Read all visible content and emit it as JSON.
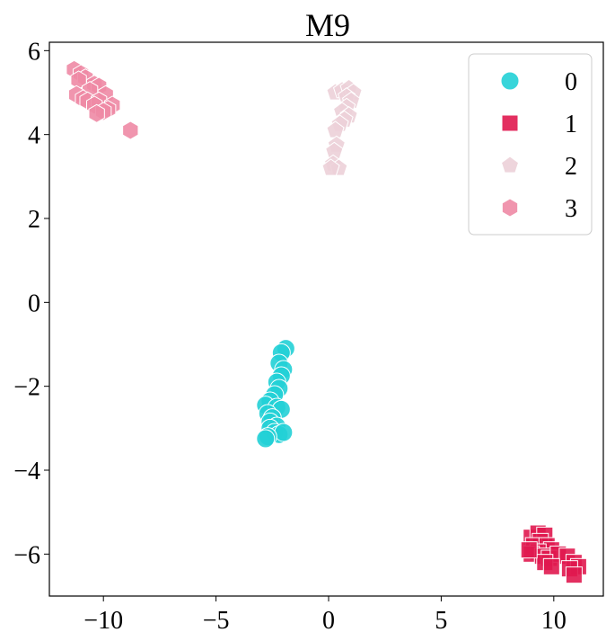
{
  "chart_data": {
    "type": "scatter",
    "title": "M9",
    "xlabel": "",
    "ylabel": "",
    "xlim": [
      -12.4,
      12.2
    ],
    "ylim": [
      -7.0,
      6.2
    ],
    "xticks": [
      -10,
      -5,
      0,
      5,
      10
    ],
    "yticks": [
      -6,
      -4,
      -2,
      0,
      2,
      4,
      6
    ],
    "xtick_labels": [
      "−10",
      "−5",
      "0",
      "5",
      "10"
    ],
    "ytick_labels": [
      "−6",
      "−4",
      "−2",
      "0",
      "2",
      "4",
      "6"
    ],
    "grid": false,
    "legend": {
      "placement": "top-right"
    },
    "series": [
      {
        "name": "0",
        "marker": "circle",
        "color": "#22d0d6",
        "points": [
          [
            -1.9,
            -1.1
          ],
          [
            -2.1,
            -1.2
          ],
          [
            -2.2,
            -1.45
          ],
          [
            -2.0,
            -1.6
          ],
          [
            -2.1,
            -1.75
          ],
          [
            -2.3,
            -1.9
          ],
          [
            -2.2,
            -2.05
          ],
          [
            -2.4,
            -2.2
          ],
          [
            -2.6,
            -2.35
          ],
          [
            -2.8,
            -2.45
          ],
          [
            -2.3,
            -2.5
          ],
          [
            -2.1,
            -2.55
          ],
          [
            -2.7,
            -2.65
          ],
          [
            -2.5,
            -2.75
          ],
          [
            -2.6,
            -2.85
          ],
          [
            -2.3,
            -2.95
          ],
          [
            -2.6,
            -3.0
          ],
          [
            -2.4,
            -3.1
          ],
          [
            -2.2,
            -3.15
          ],
          [
            -2.0,
            -3.1
          ],
          [
            -2.7,
            -3.2
          ],
          [
            -2.8,
            -3.25
          ]
        ]
      },
      {
        "name": "1",
        "marker": "square",
        "color": "#e0184f",
        "points": [
          [
            9.0,
            -5.6
          ],
          [
            9.3,
            -5.5
          ],
          [
            9.6,
            -5.55
          ],
          [
            9.4,
            -5.7
          ],
          [
            9.1,
            -5.8
          ],
          [
            9.7,
            -5.8
          ],
          [
            9.9,
            -5.9
          ],
          [
            9.3,
            -5.95
          ],
          [
            9.0,
            -6.0
          ],
          [
            9.5,
            -6.05
          ],
          [
            9.8,
            -6.1
          ],
          [
            10.2,
            -6.0
          ],
          [
            9.6,
            -6.2
          ],
          [
            10.6,
            -6.05
          ],
          [
            10.9,
            -6.2
          ],
          [
            11.1,
            -6.3
          ],
          [
            10.7,
            -6.35
          ],
          [
            10.9,
            -6.5
          ],
          [
            9.9,
            -6.3
          ],
          [
            8.9,
            -5.9
          ]
        ]
      },
      {
        "name": "2",
        "marker": "pentagon",
        "color": "#ecd0d8",
        "points": [
          [
            0.3,
            5.0
          ],
          [
            0.6,
            5.05
          ],
          [
            0.9,
            5.1
          ],
          [
            1.1,
            5.0
          ],
          [
            0.8,
            4.9
          ],
          [
            1.0,
            4.8
          ],
          [
            0.8,
            4.65
          ],
          [
            0.6,
            4.55
          ],
          [
            0.9,
            4.45
          ],
          [
            0.7,
            4.35
          ],
          [
            0.5,
            4.25
          ],
          [
            0.3,
            4.1
          ],
          [
            0.35,
            3.75
          ],
          [
            0.25,
            3.6
          ],
          [
            0.2,
            3.3
          ],
          [
            0.45,
            3.2
          ],
          [
            0.1,
            3.2
          ]
        ]
      },
      {
        "name": "3",
        "marker": "hexagon",
        "color": "#ee8aa5",
        "points": [
          [
            -11.3,
            5.55
          ],
          [
            -11.0,
            5.45
          ],
          [
            -10.8,
            5.35
          ],
          [
            -11.1,
            5.3
          ],
          [
            -10.4,
            5.2
          ],
          [
            -10.2,
            5.15
          ],
          [
            -10.6,
            5.05
          ],
          [
            -9.9,
            4.95
          ],
          [
            -11.2,
            4.95
          ],
          [
            -10.9,
            4.85
          ],
          [
            -10.7,
            4.8
          ],
          [
            -10.2,
            4.8
          ],
          [
            -10.4,
            4.7
          ],
          [
            -9.6,
            4.7
          ],
          [
            -9.8,
            4.6
          ],
          [
            -10.0,
            4.55
          ],
          [
            -10.3,
            4.5
          ],
          [
            -8.8,
            4.1
          ]
        ]
      }
    ]
  }
}
